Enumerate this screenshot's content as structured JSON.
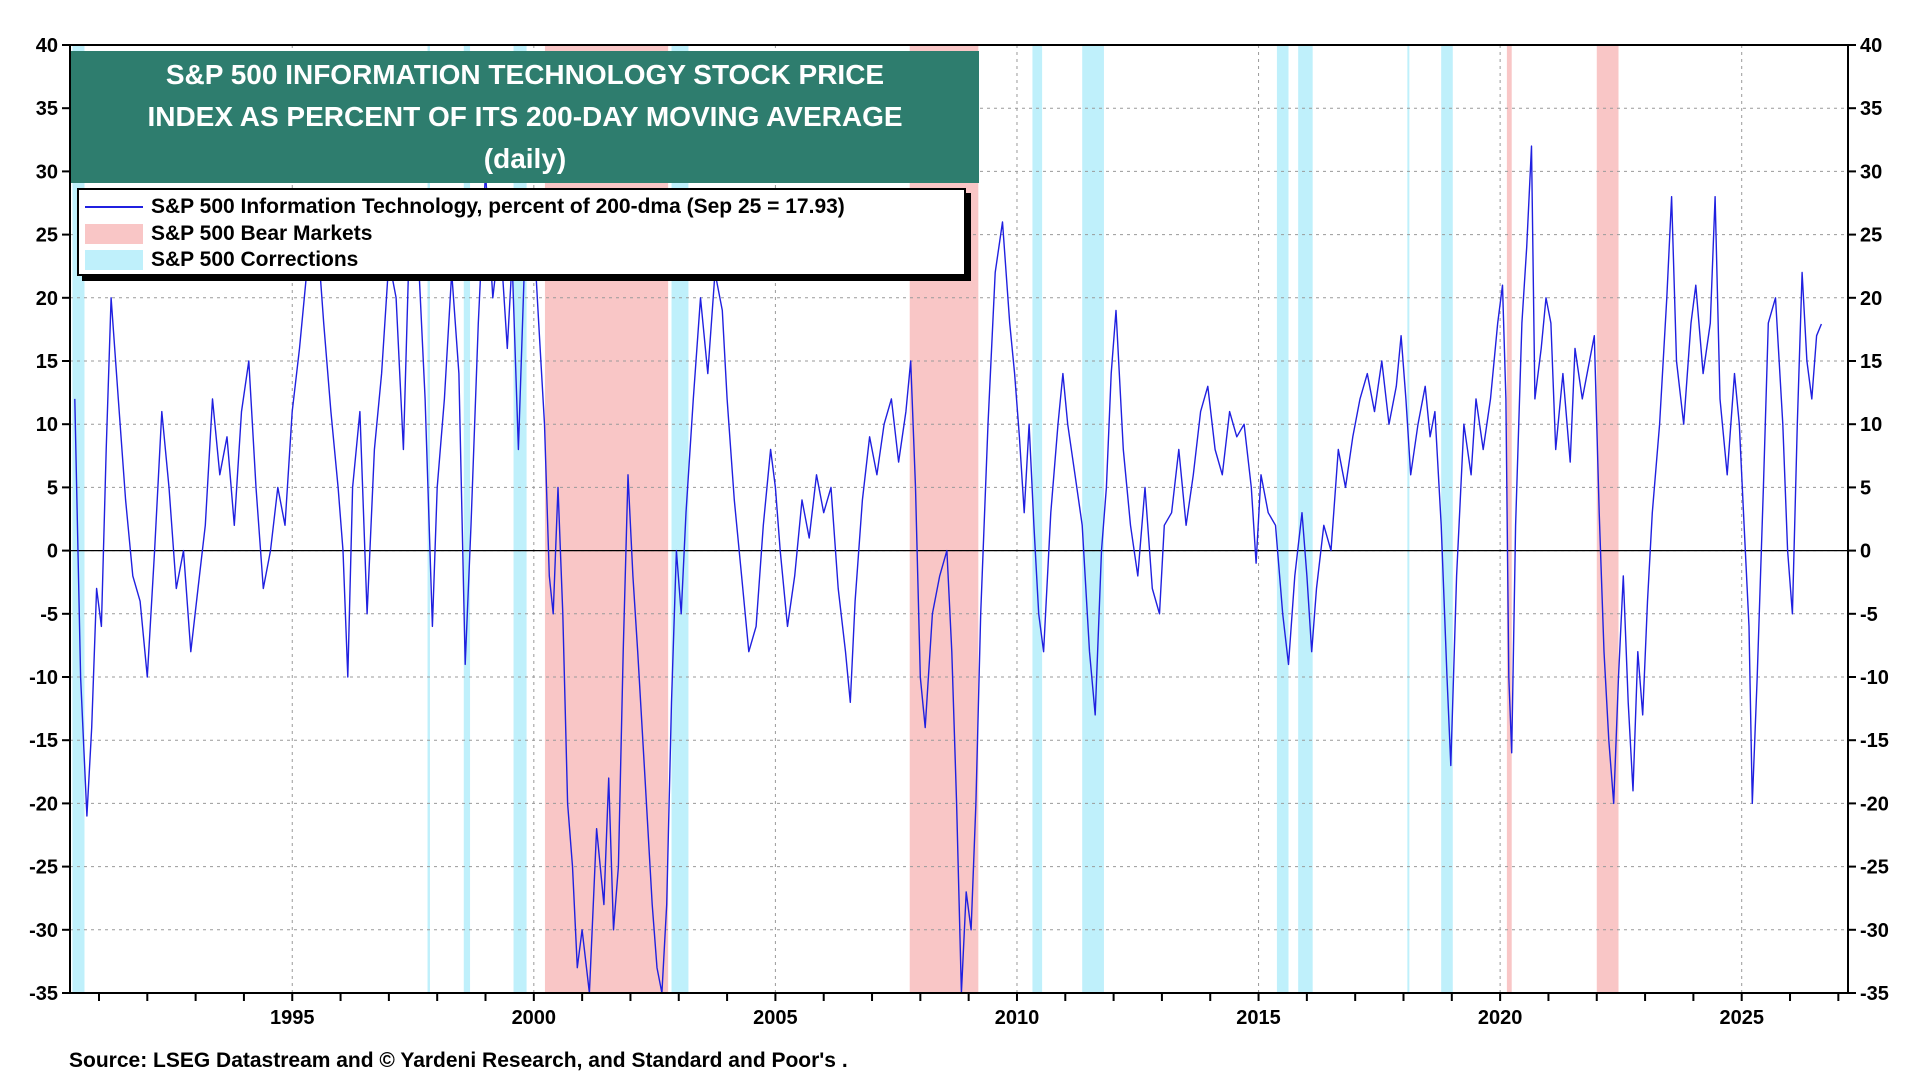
{
  "title_lines": [
    "S&P 500 INFORMATION TECHNOLOGY STOCK PRICE",
    "INDEX AS PERCENT OF ITS 200-DAY MOVING AVERAGE",
    "(daily)"
  ],
  "legend": {
    "line_label": "S&P 500 Information Technology, percent of 200-dma (Sep 25 = 17.93)",
    "bear_label": "S&P 500 Bear Markets",
    "correction_label": "S&P 500 Corrections"
  },
  "source": "Source: LSEG Datastream and © Yardeni Research, and Standard and Poor's .",
  "colors": {
    "line": "#2020e0",
    "bear": "#f9c6c6",
    "correction": "#bff0fb",
    "title_bg": "#2e7d6e",
    "zero_line": "#000000"
  },
  "chart_data": {
    "type": "line",
    "xlim": [
      1990.4,
      2027.2
    ],
    "ylim": [
      -35,
      40
    ],
    "y_ticks": [
      40,
      35,
      30,
      25,
      20,
      15,
      10,
      5,
      0,
      -5,
      -10,
      -15,
      -20,
      -25,
      -30,
      -35
    ],
    "x_ticks": [
      1995,
      2000,
      2005,
      2010,
      2015,
      2020,
      2025
    ],
    "x_tick_labels": [
      "1995",
      "2000",
      "2005",
      "2010",
      "2015",
      "2020",
      "2025"
    ],
    "grid": true,
    "legend_position": "top-left",
    "last_value": 17.93,
    "bear_markets": [
      [
        2000.23,
        2002.78
      ],
      [
        2007.78,
        2009.2
      ],
      [
        2020.14,
        2020.24
      ],
      [
        2022.0,
        2022.45
      ]
    ],
    "corrections": [
      [
        1990.45,
        1990.7
      ],
      [
        1997.8,
        1997.85
      ],
      [
        1998.55,
        1998.68
      ],
      [
        1999.58,
        1999.85
      ],
      [
        2002.85,
        2003.2
      ],
      [
        2010.32,
        2010.52
      ],
      [
        2011.35,
        2011.8
      ],
      [
        2015.38,
        2015.62
      ],
      [
        2015.82,
        2016.12
      ],
      [
        2018.08,
        2018.12
      ],
      [
        2018.78,
        2019.02
      ]
    ],
    "series": [
      {
        "values": [
          [
            1990.5,
            12
          ],
          [
            1990.62,
            -10
          ],
          [
            1990.75,
            -21
          ],
          [
            1990.85,
            -14
          ],
          [
            1990.95,
            -3
          ],
          [
            1991.05,
            -6
          ],
          [
            1991.15,
            8
          ],
          [
            1991.25,
            20
          ],
          [
            1991.4,
            12
          ],
          [
            1991.55,
            4
          ],
          [
            1991.7,
            -2
          ],
          [
            1991.85,
            -4
          ],
          [
            1992.0,
            -10
          ],
          [
            1992.15,
            0
          ],
          [
            1992.3,
            11
          ],
          [
            1992.45,
            5
          ],
          [
            1992.6,
            -3
          ],
          [
            1992.75,
            0
          ],
          [
            1992.9,
            -8
          ],
          [
            1993.05,
            -3
          ],
          [
            1993.2,
            2
          ],
          [
            1993.35,
            12
          ],
          [
            1993.5,
            6
          ],
          [
            1993.65,
            9
          ],
          [
            1993.8,
            2
          ],
          [
            1993.95,
            11
          ],
          [
            1994.1,
            15
          ],
          [
            1994.25,
            5
          ],
          [
            1994.4,
            -3
          ],
          [
            1994.55,
            0
          ],
          [
            1994.7,
            5
          ],
          [
            1994.85,
            2
          ],
          [
            1995.0,
            11
          ],
          [
            1995.15,
            16
          ],
          [
            1995.3,
            22
          ],
          [
            1995.5,
            26
          ],
          [
            1995.65,
            18
          ],
          [
            1995.8,
            11
          ],
          [
            1995.95,
            5
          ],
          [
            1996.05,
            0
          ],
          [
            1996.15,
            -10
          ],
          [
            1996.25,
            5
          ],
          [
            1996.4,
            11
          ],
          [
            1996.55,
            -5
          ],
          [
            1996.7,
            8
          ],
          [
            1996.85,
            14
          ],
          [
            1997.0,
            23
          ],
          [
            1997.15,
            20
          ],
          [
            1997.3,
            8
          ],
          [
            1997.45,
            28
          ],
          [
            1997.6,
            24
          ],
          [
            1997.75,
            12
          ],
          [
            1997.9,
            -6
          ],
          [
            1998.0,
            5
          ],
          [
            1998.15,
            12
          ],
          [
            1998.3,
            22
          ],
          [
            1998.45,
            14
          ],
          [
            1998.58,
            -9
          ],
          [
            1998.7,
            2
          ],
          [
            1998.85,
            18
          ],
          [
            1999.0,
            30
          ],
          [
            1999.15,
            20
          ],
          [
            1999.3,
            25
          ],
          [
            1999.45,
            16
          ],
          [
            1999.55,
            23
          ],
          [
            1999.68,
            8
          ],
          [
            1999.8,
            22
          ],
          [
            1999.9,
            24
          ],
          [
            2000.0,
            25
          ],
          [
            2000.1,
            18
          ],
          [
            2000.22,
            10
          ],
          [
            2000.32,
            -2
          ],
          [
            2000.4,
            -5
          ],
          [
            2000.5,
            5
          ],
          [
            2000.6,
            -5
          ],
          [
            2000.7,
            -20
          ],
          [
            2000.8,
            -25
          ],
          [
            2000.9,
            -33
          ],
          [
            2001.0,
            -30
          ],
          [
            2001.15,
            -35
          ],
          [
            2001.3,
            -22
          ],
          [
            2001.45,
            -28
          ],
          [
            2001.55,
            -18
          ],
          [
            2001.65,
            -30
          ],
          [
            2001.75,
            -25
          ],
          [
            2001.85,
            -8
          ],
          [
            2001.95,
            6
          ],
          [
            2002.05,
            -2
          ],
          [
            2002.15,
            -8
          ],
          [
            2002.3,
            -18
          ],
          [
            2002.45,
            -28
          ],
          [
            2002.55,
            -33
          ],
          [
            2002.65,
            -35
          ],
          [
            2002.75,
            -28
          ],
          [
            2002.85,
            -12
          ],
          [
            2002.95,
            0
          ],
          [
            2003.05,
            -5
          ],
          [
            2003.15,
            3
          ],
          [
            2003.3,
            12
          ],
          [
            2003.45,
            20
          ],
          [
            2003.6,
            14
          ],
          [
            2003.75,
            22
          ],
          [
            2003.9,
            19
          ],
          [
            2004.0,
            12
          ],
          [
            2004.15,
            4
          ],
          [
            2004.3,
            -2
          ],
          [
            2004.45,
            -8
          ],
          [
            2004.6,
            -6
          ],
          [
            2004.75,
            2
          ],
          [
            2004.9,
            8
          ],
          [
            2005.0,
            5
          ],
          [
            2005.1,
            0
          ],
          [
            2005.25,
            -6
          ],
          [
            2005.4,
            -2
          ],
          [
            2005.55,
            4
          ],
          [
            2005.7,
            1
          ],
          [
            2005.85,
            6
          ],
          [
            2006.0,
            3
          ],
          [
            2006.15,
            5
          ],
          [
            2006.3,
            -3
          ],
          [
            2006.45,
            -8
          ],
          [
            2006.55,
            -12
          ],
          [
            2006.65,
            -4
          ],
          [
            2006.8,
            4
          ],
          [
            2006.95,
            9
          ],
          [
            2007.1,
            6
          ],
          [
            2007.25,
            10
          ],
          [
            2007.4,
            12
          ],
          [
            2007.55,
            7
          ],
          [
            2007.7,
            11
          ],
          [
            2007.8,
            15
          ],
          [
            2007.9,
            5
          ],
          [
            2008.0,
            -10
          ],
          [
            2008.1,
            -14
          ],
          [
            2008.25,
            -5
          ],
          [
            2008.4,
            -2
          ],
          [
            2008.55,
            0
          ],
          [
            2008.65,
            -8
          ],
          [
            2008.75,
            -20
          ],
          [
            2008.85,
            -35
          ],
          [
            2008.95,
            -27
          ],
          [
            2009.05,
            -30
          ],
          [
            2009.15,
            -20
          ],
          [
            2009.25,
            -5
          ],
          [
            2009.4,
            10
          ],
          [
            2009.55,
            22
          ],
          [
            2009.7,
            26
          ],
          [
            2009.85,
            18
          ],
          [
            2009.95,
            14
          ],
          [
            2010.05,
            9
          ],
          [
            2010.15,
            3
          ],
          [
            2010.25,
            10
          ],
          [
            2010.35,
            2
          ],
          [
            2010.45,
            -5
          ],
          [
            2010.55,
            -8
          ],
          [
            2010.7,
            3
          ],
          [
            2010.85,
            10
          ],
          [
            2010.95,
            14
          ],
          [
            2011.05,
            10
          ],
          [
            2011.2,
            6
          ],
          [
            2011.35,
            2
          ],
          [
            2011.5,
            -8
          ],
          [
            2011.62,
            -13
          ],
          [
            2011.75,
            0
          ],
          [
            2011.85,
            5
          ],
          [
            2011.95,
            14
          ],
          [
            2012.05,
            19
          ],
          [
            2012.2,
            8
          ],
          [
            2012.35,
            2
          ],
          [
            2012.5,
            -2
          ],
          [
            2012.65,
            5
          ],
          [
            2012.8,
            -3
          ],
          [
            2012.95,
            -5
          ],
          [
            2013.05,
            2
          ],
          [
            2013.2,
            3
          ],
          [
            2013.35,
            8
          ],
          [
            2013.5,
            2
          ],
          [
            2013.65,
            6
          ],
          [
            2013.8,
            11
          ],
          [
            2013.95,
            13
          ],
          [
            2014.1,
            8
          ],
          [
            2014.25,
            6
          ],
          [
            2014.4,
            11
          ],
          [
            2014.55,
            9
          ],
          [
            2014.7,
            10
          ],
          [
            2014.85,
            5
          ],
          [
            2014.95,
            -1
          ],
          [
            2015.05,
            6
          ],
          [
            2015.2,
            3
          ],
          [
            2015.35,
            2
          ],
          [
            2015.5,
            -5
          ],
          [
            2015.62,
            -9
          ],
          [
            2015.75,
            -2
          ],
          [
            2015.9,
            3
          ],
          [
            2016.0,
            -2
          ],
          [
            2016.1,
            -8
          ],
          [
            2016.2,
            -3
          ],
          [
            2016.35,
            2
          ],
          [
            2016.5,
            0
          ],
          [
            2016.65,
            8
          ],
          [
            2016.8,
            5
          ],
          [
            2016.95,
            9
          ],
          [
            2017.1,
            12
          ],
          [
            2017.25,
            14
          ],
          [
            2017.4,
            11
          ],
          [
            2017.55,
            15
          ],
          [
            2017.7,
            10
          ],
          [
            2017.85,
            13
          ],
          [
            2017.95,
            17
          ],
          [
            2018.05,
            12
          ],
          [
            2018.15,
            6
          ],
          [
            2018.3,
            10
          ],
          [
            2018.45,
            13
          ],
          [
            2018.55,
            9
          ],
          [
            2018.65,
            11
          ],
          [
            2018.78,
            2
          ],
          [
            2018.9,
            -10
          ],
          [
            2018.98,
            -17
          ],
          [
            2019.1,
            -2
          ],
          [
            2019.25,
            10
          ],
          [
            2019.4,
            6
          ],
          [
            2019.5,
            12
          ],
          [
            2019.65,
            8
          ],
          [
            2019.8,
            12
          ],
          [
            2019.95,
            18
          ],
          [
            2020.05,
            21
          ],
          [
            2020.12,
            12
          ],
          [
            2020.18,
            -10
          ],
          [
            2020.24,
            -16
          ],
          [
            2020.32,
            2
          ],
          [
            2020.45,
            18
          ],
          [
            2020.55,
            24
          ],
          [
            2020.65,
            32
          ],
          [
            2020.72,
            12
          ],
          [
            2020.85,
            16
          ],
          [
            2020.95,
            20
          ],
          [
            2021.05,
            18
          ],
          [
            2021.15,
            8
          ],
          [
            2021.3,
            14
          ],
          [
            2021.45,
            7
          ],
          [
            2021.55,
            16
          ],
          [
            2021.7,
            12
          ],
          [
            2021.85,
            15
          ],
          [
            2021.95,
            17
          ],
          [
            2022.05,
            3
          ],
          [
            2022.15,
            -8
          ],
          [
            2022.25,
            -15
          ],
          [
            2022.35,
            -20
          ],
          [
            2022.45,
            -10
          ],
          [
            2022.55,
            -2
          ],
          [
            2022.65,
            -12
          ],
          [
            2022.75,
            -19
          ],
          [
            2022.85,
            -8
          ],
          [
            2022.95,
            -13
          ],
          [
            2023.05,
            -4
          ],
          [
            2023.15,
            3
          ],
          [
            2023.3,
            10
          ],
          [
            2023.45,
            20
          ],
          [
            2023.55,
            28
          ],
          [
            2023.65,
            15
          ],
          [
            2023.8,
            10
          ],
          [
            2023.95,
            18
          ],
          [
            2024.05,
            21
          ],
          [
            2024.2,
            14
          ],
          [
            2024.35,
            18
          ],
          [
            2024.45,
            28
          ],
          [
            2024.55,
            12
          ],
          [
            2024.7,
            6
          ],
          [
            2024.85,
            14
          ],
          [
            2024.95,
            10
          ],
          [
            2025.05,
            2
          ],
          [
            2025.15,
            -6
          ],
          [
            2025.22,
            -20
          ],
          [
            2025.32,
            -10
          ],
          [
            2025.45,
            5
          ],
          [
            2025.55,
            18
          ],
          [
            2025.7,
            20
          ],
          [
            2025.85,
            10
          ],
          [
            2025.95,
            0
          ],
          [
            2026.05,
            -5
          ],
          [
            2026.15,
            10
          ],
          [
            2026.25,
            22
          ],
          [
            2026.35,
            15
          ],
          [
            2026.45,
            12
          ],
          [
            2026.55,
            17
          ],
          [
            2026.65,
            17.93
          ]
        ]
      }
    ]
  }
}
